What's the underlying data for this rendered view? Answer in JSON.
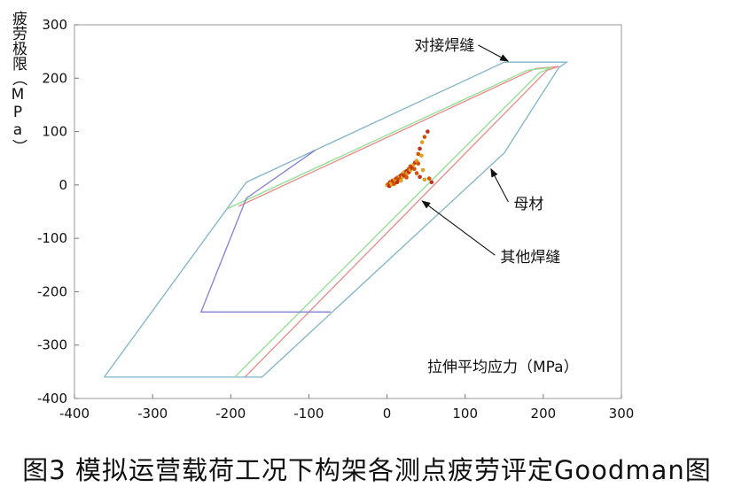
{
  "chart_data": {
    "type": "line",
    "title": "",
    "xlabel": "拉伸平均应力（MPa）",
    "ylabel": "疲劳极限（MPa）",
    "xlim": [
      -400,
      300
    ],
    "ylim": [
      -400,
      300
    ],
    "xticks": [
      -400,
      -300,
      -200,
      -100,
      0,
      100,
      200,
      300
    ],
    "yticks": [
      -400,
      -300,
      -200,
      -100,
      0,
      100,
      200,
      300
    ],
    "grid": false,
    "series": [
      {
        "name": "母材",
        "color": "#7fb4c8",
        "x": [
          -362,
          -180,
          150,
          230,
          220,
          150,
          -160,
          -362
        ],
        "y": [
          -360,
          5,
          230,
          230,
          220,
          60,
          -360,
          -360
        ]
      },
      {
        "name": "对接焊缝",
        "color": "#e88a8a",
        "x": [
          -190,
          190,
          220,
          205,
          -182
        ],
        "y": [
          -40,
          218,
          222,
          215,
          -360
        ]
      },
      {
        "name": "其他焊缝",
        "color": "#8fe08f",
        "x": [
          -205,
          180,
          210,
          195,
          -195
        ],
        "y": [
          -45,
          215,
          220,
          210,
          -360
        ]
      },
      {
        "name": "",
        "color": "#7f7fd6",
        "x": [
          -92,
          -180,
          -238,
          -72
        ],
        "y": [
          65,
          -25,
          -238,
          -238
        ]
      }
    ],
    "scatter": {
      "colors": [
        "#e0a020",
        "#d35400",
        "#c03020"
      ],
      "points": [
        [
          0,
          0
        ],
        [
          2,
          2
        ],
        [
          4,
          5
        ],
        [
          5,
          3
        ],
        [
          7,
          8
        ],
        [
          8,
          6
        ],
        [
          10,
          10
        ],
        [
          10,
          4
        ],
        [
          12,
          12
        ],
        [
          12,
          7
        ],
        [
          14,
          14
        ],
        [
          15,
          9
        ],
        [
          16,
          16
        ],
        [
          17,
          12
        ],
        [
          18,
          18
        ],
        [
          20,
          15
        ],
        [
          20,
          20
        ],
        [
          22,
          18
        ],
        [
          22,
          24
        ],
        [
          24,
          20
        ],
        [
          25,
          26
        ],
        [
          26,
          22
        ],
        [
          28,
          30
        ],
        [
          28,
          24
        ],
        [
          30,
          28
        ],
        [
          30,
          35
        ],
        [
          32,
          32
        ],
        [
          34,
          38
        ],
        [
          35,
          30
        ],
        [
          36,
          42
        ],
        [
          38,
          45
        ],
        [
          40,
          58
        ],
        [
          42,
          68
        ],
        [
          45,
          80
        ],
        [
          48,
          90
        ],
        [
          52,
          100
        ],
        [
          44,
          55
        ],
        [
          38,
          22
        ],
        [
          42,
          15
        ],
        [
          48,
          10
        ],
        [
          54,
          12
        ],
        [
          57,
          5
        ],
        [
          46,
          28
        ],
        [
          40,
          40
        ],
        [
          3,
          -2
        ],
        [
          6,
          1
        ],
        [
          9,
          2
        ],
        [
          13,
          5
        ],
        [
          18,
          8
        ],
        [
          25,
          14
        ]
      ]
    },
    "annotations": [
      {
        "text": "对接焊缝",
        "x_text": 35,
        "y_text": 262,
        "x_arrow": 155,
        "y_arrow": 232
      },
      {
        "text": "母材",
        "x_text": 162,
        "y_text": -35,
        "x_arrow": 133,
        "y_arrow": 30
      },
      {
        "text": "其他焊缝",
        "x_text": 145,
        "y_text": -135,
        "x_arrow": 45,
        "y_arrow": -30
      }
    ]
  },
  "caption": "图3  模拟运营载荷工况下构架各测点疲劳评定Goodman图"
}
